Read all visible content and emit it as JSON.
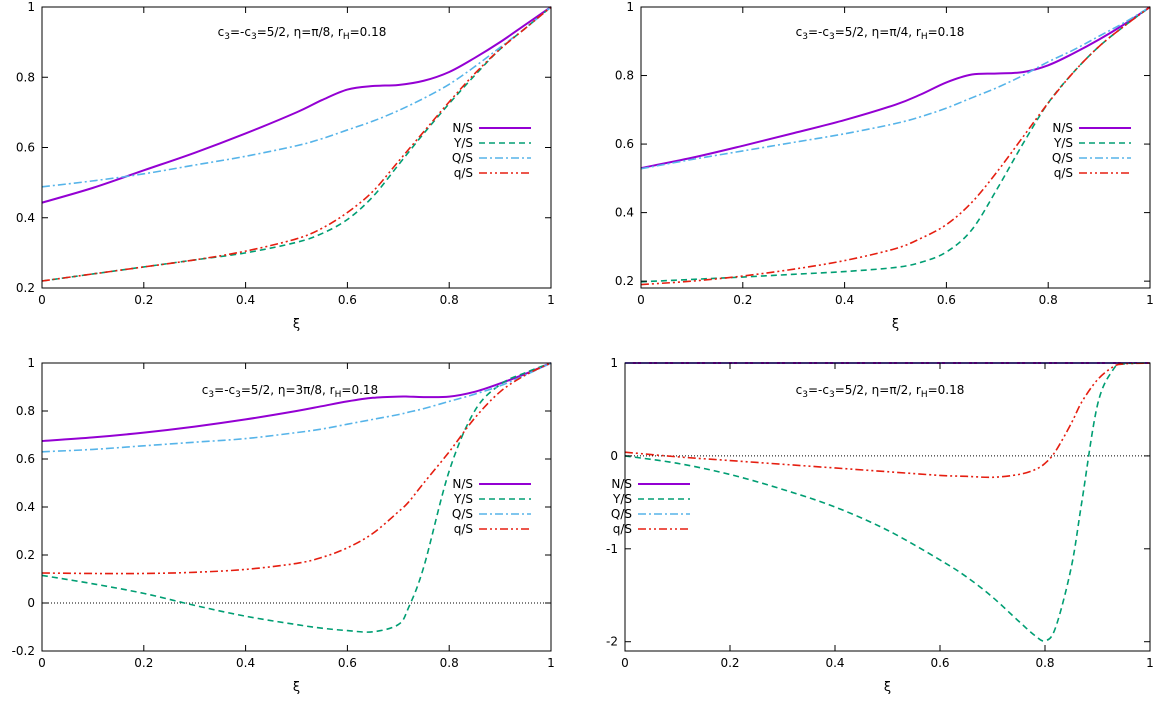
{
  "chart_data": [
    {
      "type": "line",
      "title": "c₃=-c₃=5/2, η=π/8, r_H=0.18",
      "title_parts": [
        "c",
        "3",
        "=-c",
        "3",
        "=5/2, η=π/8, r",
        "H",
        "=0.18"
      ],
      "xlabel": "ξ",
      "ylabel": "",
      "xlim": [
        0,
        1
      ],
      "ylim": [
        0.2,
        1
      ],
      "xticks": [
        "0",
        "0.2",
        "0.4",
        "0.6",
        "0.8",
        "1"
      ],
      "yticks": [
        "0.2",
        "0.4",
        "0.6",
        "0.8",
        "1"
      ],
      "ytick_values": [
        0.2,
        0.4,
        0.6,
        0.8,
        1
      ],
      "zero_line": false,
      "legend_position": "right-middle",
      "x": [
        0,
        0.1,
        0.2,
        0.3,
        0.4,
        0.5,
        0.55,
        0.6,
        0.65,
        0.7,
        0.75,
        0.8,
        0.85,
        0.9,
        0.95,
        1
      ],
      "series": [
        {
          "name": "N/S",
          "style": "solid",
          "values": [
            0.443,
            0.485,
            0.535,
            0.585,
            0.64,
            0.7,
            0.735,
            0.765,
            0.775,
            0.778,
            0.79,
            0.815,
            0.855,
            0.9,
            0.95,
            1
          ]
        },
        {
          "name": "Y/S",
          "style": "dashed",
          "values": [
            0.22,
            0.24,
            0.26,
            0.28,
            0.3,
            0.33,
            0.355,
            0.395,
            0.46,
            0.55,
            0.64,
            0.725,
            0.805,
            0.88,
            0.94,
            1
          ]
        },
        {
          "name": "Q/S",
          "style": "dashdot",
          "values": [
            0.488,
            0.505,
            0.525,
            0.55,
            0.575,
            0.605,
            0.625,
            0.65,
            0.675,
            0.705,
            0.74,
            0.78,
            0.83,
            0.885,
            0.94,
            1
          ]
        },
        {
          "name": "q/S",
          "style": "dashdotdot",
          "values": [
            0.22,
            0.24,
            0.26,
            0.28,
            0.305,
            0.34,
            0.37,
            0.415,
            0.475,
            0.56,
            0.645,
            0.73,
            0.81,
            0.88,
            0.94,
            1
          ]
        }
      ]
    },
    {
      "type": "line",
      "title": "c₃=-c₃=5/2, η=π/4, r_H=0.18",
      "title_parts": [
        "c",
        "3",
        "=-c",
        "3",
        "=5/2, η=π/4, r",
        "H",
        "=0.18"
      ],
      "xlabel": "ξ",
      "ylabel": "",
      "xlim": [
        0,
        1
      ],
      "ylim": [
        0.18,
        1
      ],
      "xticks": [
        "0",
        "0.2",
        "0.4",
        "0.6",
        "0.8",
        "1"
      ],
      "yticks": [
        "0.2",
        "0.4",
        "0.6",
        "0.8",
        "1"
      ],
      "ytick_values": [
        0.2,
        0.4,
        0.6,
        0.8,
        1
      ],
      "zero_line": false,
      "legend_position": "right-middle",
      "x": [
        0,
        0.1,
        0.2,
        0.3,
        0.4,
        0.5,
        0.55,
        0.6,
        0.65,
        0.7,
        0.75,
        0.8,
        0.85,
        0.9,
        0.95,
        1
      ],
      "series": [
        {
          "name": "N/S",
          "style": "solid",
          "values": [
            0.53,
            0.56,
            0.595,
            0.632,
            0.67,
            0.715,
            0.745,
            0.78,
            0.803,
            0.806,
            0.81,
            0.83,
            0.865,
            0.905,
            0.95,
            1
          ]
        },
        {
          "name": "Y/S",
          "style": "dashed",
          "values": [
            0.198,
            0.205,
            0.212,
            0.22,
            0.228,
            0.24,
            0.255,
            0.285,
            0.35,
            0.47,
            0.6,
            0.72,
            0.81,
            0.885,
            0.945,
            1
          ]
        },
        {
          "name": "Q/S",
          "style": "dashdot",
          "values": [
            0.528,
            0.555,
            0.58,
            0.605,
            0.63,
            0.66,
            0.68,
            0.705,
            0.735,
            0.765,
            0.8,
            0.84,
            0.875,
            0.915,
            0.955,
            1
          ]
        },
        {
          "name": "q/S",
          "style": "dashdotdot",
          "values": [
            0.19,
            0.2,
            0.215,
            0.235,
            0.26,
            0.295,
            0.325,
            0.365,
            0.43,
            0.52,
            0.62,
            0.72,
            0.81,
            0.885,
            0.945,
            1
          ]
        }
      ]
    },
    {
      "type": "line",
      "title": "c₃=-c₃=5/2, η=3π/8, r_H=0.18",
      "title_parts": [
        "c",
        "3",
        "=-c",
        "3",
        "=5/2, η=3π/8, r",
        "H",
        "=0.18"
      ],
      "xlabel": "ξ",
      "ylabel": "",
      "xlim": [
        0,
        1
      ],
      "ylim": [
        -0.2,
        1
      ],
      "xticks": [
        "0",
        "0.2",
        "0.4",
        "0.6",
        "0.8",
        "1"
      ],
      "yticks": [
        "-0.2",
        "0",
        "0.2",
        "0.4",
        "0.6",
        "0.8",
        "1"
      ],
      "ytick_values": [
        -0.2,
        0,
        0.2,
        0.4,
        0.6,
        0.8,
        1
      ],
      "zero_line": true,
      "legend_position": "right-middle",
      "x": [
        0,
        0.1,
        0.2,
        0.3,
        0.4,
        0.5,
        0.55,
        0.6,
        0.65,
        0.7,
        0.72,
        0.75,
        0.8,
        0.85,
        0.9,
        0.95,
        1
      ],
      "series": [
        {
          "name": "N/S",
          "style": "solid",
          "values": [
            0.675,
            0.69,
            0.71,
            0.735,
            0.765,
            0.8,
            0.82,
            0.84,
            0.855,
            0.86,
            0.86,
            0.858,
            0.86,
            0.88,
            0.915,
            0.955,
            1
          ]
        },
        {
          "name": "Y/S",
          "style": "dashed",
          "values": [
            0.115,
            0.08,
            0.04,
            -0.01,
            -0.055,
            -0.09,
            -0.105,
            -0.115,
            -0.12,
            -0.09,
            -0.02,
            0.15,
            0.55,
            0.8,
            0.91,
            0.96,
            1
          ]
        },
        {
          "name": "Q/S",
          "style": "dashdot",
          "values": [
            0.63,
            0.64,
            0.655,
            0.67,
            0.685,
            0.71,
            0.725,
            0.745,
            0.765,
            0.785,
            0.795,
            0.81,
            0.84,
            0.87,
            0.905,
            0.95,
            1
          ]
        },
        {
          "name": "q/S",
          "style": "dashdotdot",
          "values": [
            0.125,
            0.123,
            0.123,
            0.128,
            0.14,
            0.165,
            0.19,
            0.23,
            0.29,
            0.38,
            0.42,
            0.5,
            0.63,
            0.77,
            0.88,
            0.95,
            1
          ]
        }
      ]
    },
    {
      "type": "line",
      "title": "c₃=-c₃=5/2, η=π/2, r_H=0.18",
      "title_parts": [
        "c",
        "3",
        "=-c",
        "3",
        "=5/2, η=π/2, r",
        "H",
        "=0.18"
      ],
      "xlabel": "ξ",
      "ylabel": "",
      "xlim": [
        0,
        1
      ],
      "ylim": [
        -2.1,
        1
      ],
      "xticks": [
        "0",
        "0.2",
        "0.4",
        "0.6",
        "0.8",
        "1"
      ],
      "yticks": [
        "-2",
        "-1",
        "0",
        "1"
      ],
      "ytick_values": [
        -2,
        -1,
        0,
        1
      ],
      "zero_line": true,
      "legend_position": "left-middle",
      "x": [
        0,
        0.1,
        0.2,
        0.3,
        0.4,
        0.5,
        0.6,
        0.65,
        0.7,
        0.75,
        0.78,
        0.8,
        0.82,
        0.85,
        0.87,
        0.9,
        0.93,
        0.95,
        1
      ],
      "series": [
        {
          "name": "N/S",
          "style": "solid",
          "values": [
            1,
            1,
            1,
            1,
            1,
            1,
            1,
            1,
            1,
            1,
            1,
            1,
            1,
            1,
            1,
            1,
            1,
            1,
            1
          ]
        },
        {
          "name": "Y/S",
          "style": "dashed",
          "values": [
            0,
            -0.08,
            -0.2,
            -0.36,
            -0.55,
            -0.8,
            -1.12,
            -1.3,
            -1.52,
            -1.78,
            -1.93,
            -1.99,
            -1.85,
            -1.2,
            -0.5,
            0.55,
            0.93,
            0.99,
            1
          ]
        },
        {
          "name": "Q/S",
          "style": "dashdot",
          "values": [
            1,
            1,
            1,
            1,
            1,
            1,
            1,
            1,
            1,
            1,
            1,
            1,
            1,
            1,
            1,
            1,
            1,
            1,
            1
          ]
        },
        {
          "name": "q/S",
          "style": "dashdotdot",
          "values": [
            0.04,
            -0.01,
            -0.05,
            -0.09,
            -0.13,
            -0.17,
            -0.21,
            -0.22,
            -0.23,
            -0.2,
            -0.15,
            -0.08,
            0.05,
            0.35,
            0.58,
            0.82,
            0.96,
            0.99,
            1
          ]
        }
      ]
    }
  ],
  "series_colors": {
    "N/S": "#9400d3",
    "Y/S": "#009e73",
    "Q/S": "#56b4e9",
    "q/S": "#e51e10"
  },
  "dash_styles": {
    "solid": "",
    "dashed": "6 4",
    "dashdot": "8 3 2 3",
    "dashdotdot": "8 3 2 3 2 3"
  }
}
